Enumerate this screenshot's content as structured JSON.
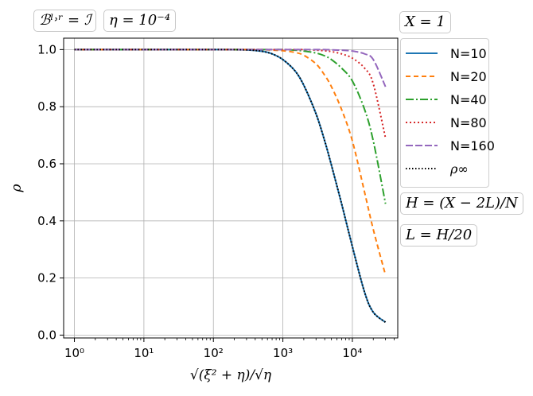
{
  "annotations": {
    "bc": "ℬˡ˒ʳ = ℐ",
    "eta": "η = 10⁻⁴",
    "x_eq": "X = 1",
    "h_eq": "H = (X − 2L)/N",
    "l_eq": "L = H/20"
  },
  "chart_data": {
    "type": "line",
    "xlabel": "√(ξ² + η)/√η",
    "ylabel": "ρ",
    "xscale": "log",
    "xlim": [
      0.7,
      45000
    ],
    "ylim": [
      -0.01,
      1.04
    ],
    "grid": true,
    "legend_position": "right",
    "x_ticks": [
      {
        "value": 1,
        "label": "10⁰"
      },
      {
        "value": 10,
        "label": "10¹"
      },
      {
        "value": 100,
        "label": "10²"
      },
      {
        "value": 1000,
        "label": "10³"
      },
      {
        "value": 10000,
        "label": "10⁴"
      }
    ],
    "y_ticks": [
      0.0,
      0.2,
      0.4,
      0.6,
      0.8,
      1.0
    ],
    "y_tick_labels": [
      "0.0",
      "0.2",
      "0.4",
      "0.6",
      "0.8",
      "1.0"
    ],
    "x": [
      1,
      10,
      100,
      300,
      500,
      700,
      1000,
      1500,
      2000,
      3000,
      4000,
      5000,
      7000,
      10000,
      15000,
      20000,
      30000
    ],
    "series": [
      {
        "name": "N=10",
        "color": "#1f77b4",
        "dash": "",
        "width": 2,
        "values": [
          1.0,
          1.0,
          1.0,
          0.999,
          0.994,
          0.985,
          0.965,
          0.925,
          0.875,
          0.775,
          0.68,
          0.595,
          0.46,
          0.31,
          0.15,
          0.08,
          0.045
        ]
      },
      {
        "name": "N=20",
        "color": "#ff7f0e",
        "dash": "6,4",
        "width": 2,
        "values": [
          1.0,
          1.0,
          1.0,
          1.0,
          1.0,
          0.998,
          0.996,
          0.99,
          0.98,
          0.95,
          0.91,
          0.87,
          0.79,
          0.68,
          0.5,
          0.37,
          0.21
        ]
      },
      {
        "name": "N=40",
        "color": "#2ca02c",
        "dash": "10,3,2,3",
        "width": 2,
        "values": [
          1.0,
          1.0,
          1.0,
          1.0,
          1.0,
          1.0,
          1.0,
          0.998,
          0.995,
          0.988,
          0.978,
          0.965,
          0.935,
          0.89,
          0.79,
          0.68,
          0.46
        ]
      },
      {
        "name": "N=80",
        "color": "#d62728",
        "dash": "2,3",
        "width": 2,
        "values": [
          1.0,
          1.0,
          1.0,
          1.0,
          1.0,
          1.0,
          1.0,
          1.0,
          1.0,
          0.998,
          0.996,
          0.993,
          0.985,
          0.97,
          0.935,
          0.88,
          0.69
        ]
      },
      {
        "name": "N=160",
        "color": "#9467bd",
        "dash": "9,3",
        "width": 2,
        "values": [
          1.0,
          1.0,
          1.0,
          1.0,
          1.0,
          1.0,
          1.0,
          1.0,
          1.0,
          1.0,
          1.0,
          0.999,
          0.998,
          0.995,
          0.985,
          0.965,
          0.87
        ]
      },
      {
        "name": "ρ∞",
        "color": "#000000",
        "dash": "1.5,2.5",
        "width": 2,
        "values": [
          1.0,
          1.0,
          1.0,
          0.999,
          0.994,
          0.985,
          0.965,
          0.925,
          0.875,
          0.775,
          0.68,
          0.595,
          0.46,
          0.31,
          0.15,
          0.08,
          0.045
        ]
      }
    ]
  }
}
